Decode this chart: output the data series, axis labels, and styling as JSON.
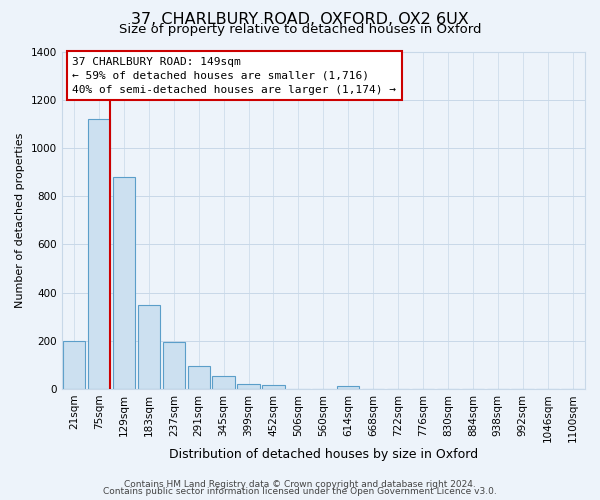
{
  "title": "37, CHARLBURY ROAD, OXFORD, OX2 6UX",
  "subtitle": "Size of property relative to detached houses in Oxford",
  "xlabel": "Distribution of detached houses by size in Oxford",
  "ylabel": "Number of detached properties",
  "bar_labels": [
    "21sqm",
    "75sqm",
    "129sqm",
    "183sqm",
    "237sqm",
    "291sqm",
    "345sqm",
    "399sqm",
    "452sqm",
    "506sqm",
    "560sqm",
    "614sqm",
    "668sqm",
    "722sqm",
    "776sqm",
    "830sqm",
    "884sqm",
    "938sqm",
    "992sqm",
    "1046sqm",
    "1100sqm"
  ],
  "bar_values": [
    200,
    1120,
    880,
    350,
    195,
    95,
    55,
    20,
    15,
    0,
    0,
    12,
    0,
    0,
    0,
    0,
    0,
    0,
    0,
    0,
    0
  ],
  "bar_color": "#cce0f0",
  "bar_edge_color": "#5b9ec9",
  "bar_edge_width": 0.8,
  "red_line_color": "#cc0000",
  "ylim": [
    0,
    1400
  ],
  "yticks": [
    0,
    200,
    400,
    600,
    800,
    1000,
    1200,
    1400
  ],
  "annotation_box_text": "37 CHARLBURY ROAD: 149sqm\n← 59% of detached houses are smaller (1,716)\n40% of semi-detached houses are larger (1,174) →",
  "annotation_box_color": "#ffffff",
  "annotation_box_edge_color": "#cc0000",
  "footer_line1": "Contains HM Land Registry data © Crown copyright and database right 2024.",
  "footer_line2": "Contains public sector information licensed under the Open Government Licence v3.0.",
  "background_color": "#edf3fa",
  "grid_color": "#c8d8e8",
  "title_fontsize": 11.5,
  "subtitle_fontsize": 9.5,
  "xlabel_fontsize": 9,
  "ylabel_fontsize": 8,
  "tick_fontsize": 7.5,
  "footer_fontsize": 6.5,
  "annotation_fontsize": 8.0
}
